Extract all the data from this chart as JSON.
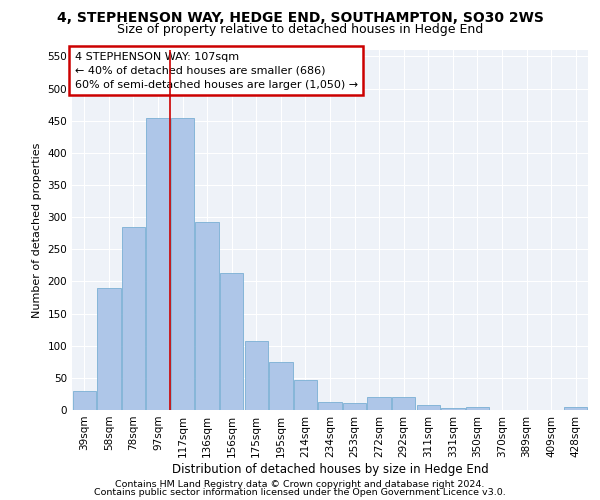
{
  "title1": "4, STEPHENSON WAY, HEDGE END, SOUTHAMPTON, SO30 2WS",
  "title2": "Size of property relative to detached houses in Hedge End",
  "xlabel": "Distribution of detached houses by size in Hedge End",
  "ylabel": "Number of detached properties",
  "categories": [
    "39sqm",
    "58sqm",
    "78sqm",
    "97sqm",
    "117sqm",
    "136sqm",
    "156sqm",
    "175sqm",
    "195sqm",
    "214sqm",
    "234sqm",
    "253sqm",
    "272sqm",
    "292sqm",
    "311sqm",
    "331sqm",
    "350sqm",
    "370sqm",
    "389sqm",
    "409sqm",
    "428sqm"
  ],
  "values": [
    30,
    190,
    285,
    455,
    455,
    293,
    213,
    108,
    75,
    47,
    12,
    11,
    20,
    20,
    8,
    3,
    5,
    0,
    0,
    0,
    5
  ],
  "bar_color": "#aec6e8",
  "bar_edge_color": "#7aafd4",
  "vline_x_index": 3.5,
  "annotation_text": "4 STEPHENSON WAY: 107sqm\n← 40% of detached houses are smaller (686)\n60% of semi-detached houses are larger (1,050) →",
  "annotation_box_color": "#ffffff",
  "annotation_box_edge_color": "#cc0000",
  "footer1": "Contains HM Land Registry data © Crown copyright and database right 2024.",
  "footer2": "Contains public sector information licensed under the Open Government Licence v3.0.",
  "ylim": [
    0,
    560
  ],
  "yticks": [
    0,
    50,
    100,
    150,
    200,
    250,
    300,
    350,
    400,
    450,
    500,
    550
  ],
  "bg_color": "#eef2f8",
  "grid_color": "#ffffff",
  "title1_fontsize": 10,
  "title2_fontsize": 9,
  "xlabel_fontsize": 8.5,
  "ylabel_fontsize": 8,
  "tick_fontsize": 7.5,
  "annotation_fontsize": 8,
  "footer_fontsize": 6.8
}
